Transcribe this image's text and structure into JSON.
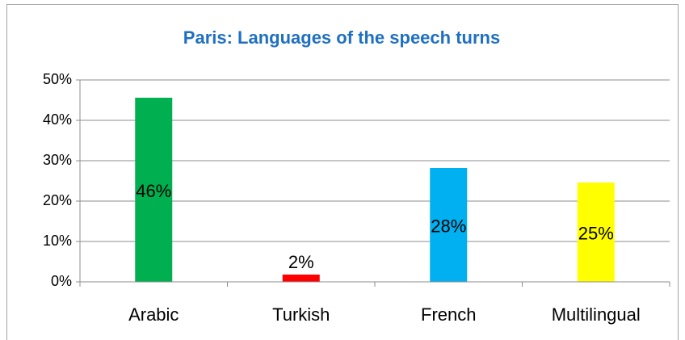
{
  "chart_data": {
    "type": "bar",
    "title": "Paris: Languages of the speech turns",
    "categories": [
      "Arabic",
      "Turkish",
      "French",
      "Multilingual"
    ],
    "values": [
      45.6,
      1.8,
      28.2,
      24.6
    ],
    "value_labels": [
      "46%",
      "2%",
      "28%",
      "25%"
    ],
    "colors": [
      "#00b050",
      "#ff0000",
      "#00b0f0",
      "#ffff00"
    ],
    "ylim": [
      0,
      50
    ],
    "yticks": [
      {
        "value": 0,
        "label": "0%"
      },
      {
        "value": 10,
        "label": "10%"
      },
      {
        "value": 20,
        "label": "20%"
      },
      {
        "value": 30,
        "label": "30%"
      },
      {
        "value": 40,
        "label": "40%"
      },
      {
        "value": 50,
        "label": "50%"
      }
    ],
    "grid": true
  }
}
